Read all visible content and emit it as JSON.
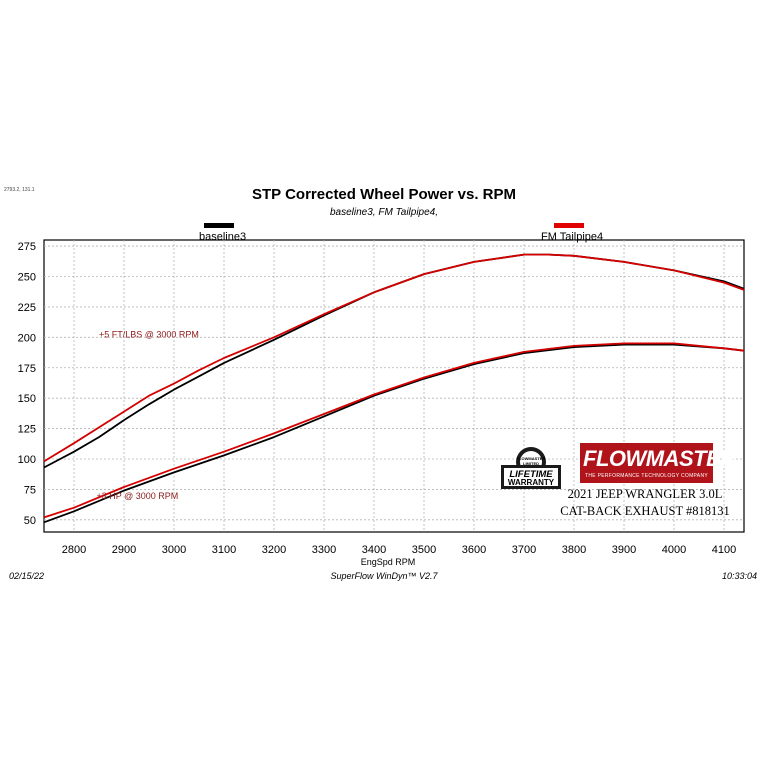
{
  "corner_id": "2793.2, 131.1",
  "chart_data": {
    "type": "line",
    "title": "STP Corrected Wheel Power vs. RPM",
    "subtitle": "baseline3, FM Tailpipe4,",
    "xlabel": "EngSpd  RPM",
    "ylabel": "",
    "xlim": [
      2740,
      4140
    ],
    "ylim": [
      40,
      280
    ],
    "xticks": [
      2800,
      2900,
      3000,
      3100,
      3200,
      3300,
      3400,
      3500,
      3600,
      3700,
      3800,
      3900,
      4000,
      4100
    ],
    "yticks": [
      50,
      75,
      100,
      125,
      150,
      175,
      200,
      225,
      250,
      275
    ],
    "grid": true,
    "legend_position": "top",
    "series": [
      {
        "name": "baseline3",
        "metric": "torque",
        "color": "#000000",
        "x": [
          2740,
          2800,
          2850,
          2900,
          2950,
          3000,
          3050,
          3100,
          3200,
          3300,
          3400,
          3500,
          3600,
          3700,
          3750,
          3800,
          3900,
          4000,
          4100,
          4140
        ],
        "y": [
          93,
          106,
          118,
          132,
          145,
          157,
          168,
          179,
          198,
          218,
          237,
          252,
          262,
          268,
          268,
          267,
          262,
          255,
          246,
          240
        ]
      },
      {
        "name": "FM Tailpipe4",
        "metric": "torque",
        "color": "#d40000",
        "x": [
          2740,
          2800,
          2850,
          2900,
          2950,
          3000,
          3050,
          3100,
          3200,
          3300,
          3400,
          3500,
          3600,
          3700,
          3750,
          3800,
          3900,
          4000,
          4100,
          4140
        ],
        "y": [
          98,
          113,
          126,
          139,
          152,
          162,
          173,
          183,
          200,
          219,
          237,
          252,
          262,
          268,
          268,
          267,
          262,
          255,
          245,
          239
        ]
      },
      {
        "name": "baseline3",
        "metric": "power",
        "color": "#000000",
        "x": [
          2740,
          2800,
          2900,
          3000,
          3100,
          3200,
          3300,
          3400,
          3500,
          3600,
          3700,
          3800,
          3900,
          4000,
          4100,
          4140
        ],
        "y": [
          48,
          57,
          74,
          89,
          103,
          118,
          135,
          152,
          166,
          178,
          187,
          192,
          194,
          194,
          191,
          189
        ]
      },
      {
        "name": "FM Tailpipe4",
        "metric": "power",
        "color": "#d40000",
        "x": [
          2740,
          2800,
          2900,
          3000,
          3100,
          3200,
          3300,
          3400,
          3500,
          3600,
          3700,
          3800,
          3900,
          4000,
          4100,
          4140
        ],
        "y": [
          52,
          60,
          77,
          92,
          106,
          121,
          137,
          153,
          167,
          179,
          188,
          193,
          195,
          195,
          191,
          189
        ]
      }
    ],
    "annotations": [
      {
        "text": "+5 FT/LBS @ 3000 RPM",
        "x": 2850,
        "y": 200
      },
      {
        "text": "+3 HP @ 3000 RPM",
        "x": 2845,
        "y": 67
      }
    ]
  },
  "footer": {
    "date": "02/15/22",
    "software": "SuperFlow WinDyn™ V2.7",
    "time": "10:33:04"
  },
  "badge": {
    "top_text": "FLOWMASTER LIMITED",
    "main_text": "LIFETIME WARRANTY"
  },
  "logo": {
    "brand": "FLOWMASTER",
    "tagline": "THE PERFORMANCE TECHNOLOGY COMPANY"
  },
  "product": {
    "line1": "2021 JEEP WRANGLER 3.0L",
    "line2": "CAT-BACK EXHAUST #818131"
  }
}
